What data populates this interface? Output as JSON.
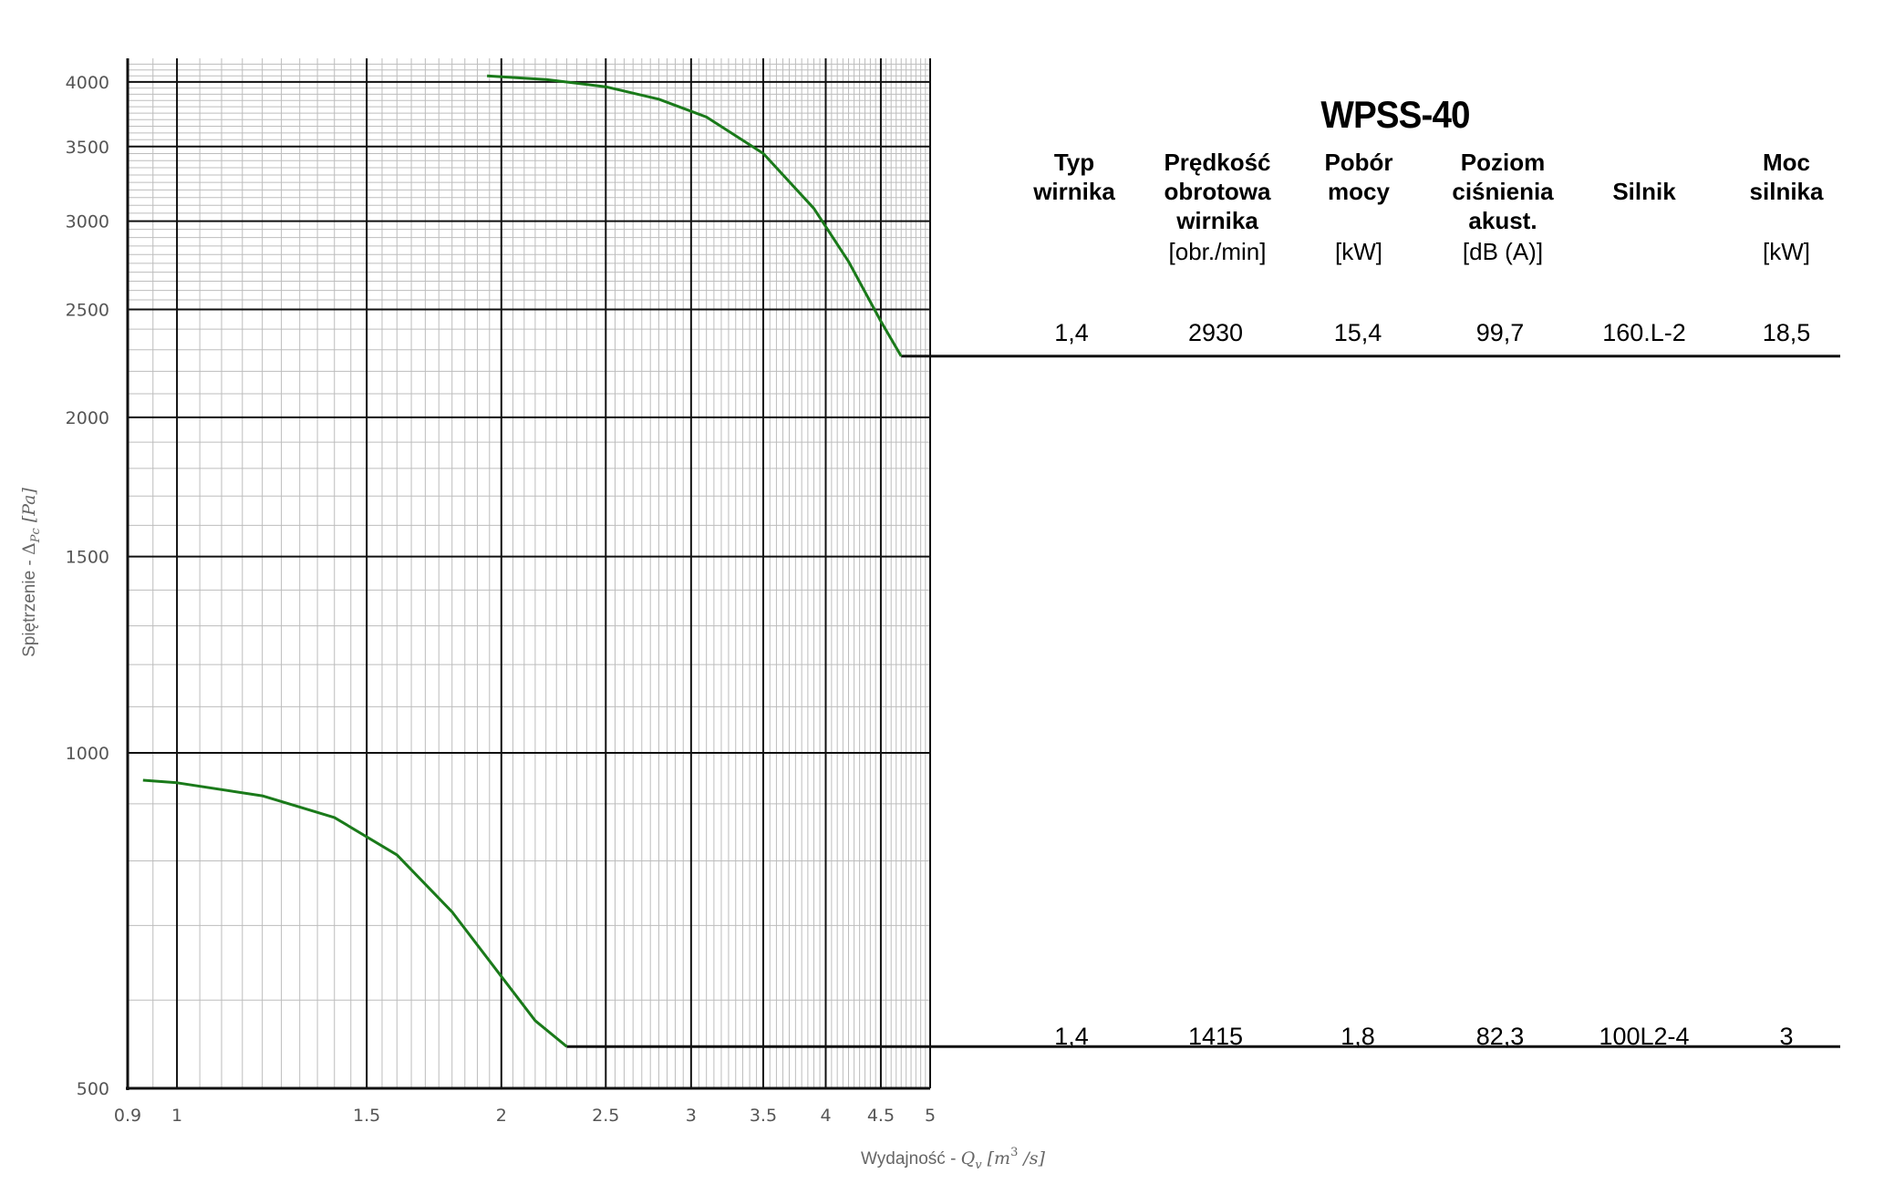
{
  "chart_data": {
    "type": "line",
    "xscale": "log",
    "yscale": "log",
    "xlim": [
      0.9,
      5
    ],
    "ylim": [
      500,
      4200
    ],
    "x_ticks": [
      0.9,
      1,
      1.5,
      2,
      2.5,
      3,
      3.5,
      4,
      4.5,
      5
    ],
    "x_tick_labels": [
      "0.9",
      "1",
      "1.5",
      "2",
      "2.5",
      "3",
      "3.5",
      "4",
      "4.5",
      "5"
    ],
    "y_ticks": [
      500,
      1000,
      1500,
      2000,
      2500,
      3000,
      3500,
      4000
    ],
    "y_tick_labels": [
      "500",
      "1000",
      "1500",
      "2000",
      "2500",
      "3000",
      "3500",
      "4000"
    ],
    "xlabel": "Wydajność - Q_v [m³ /s]",
    "xlabel_parts": {
      "text": "Wydajność - ",
      "var": "Q",
      "sub": "v",
      "unit_open": " [m",
      "sup": "3",
      "unit_close": " /s]"
    },
    "ylabel": "Spiętrzenie - Δ_Pc [Pa]",
    "ylabel_parts": {
      "text": "Spiętrzenie - ",
      "var": "Δ",
      "sub": "Pc",
      "unit": " [Pa]"
    },
    "grid": true,
    "curve_color": "#1a7a1a",
    "series": [
      {
        "x": [
          1.94,
          2.2,
          2.5,
          2.8,
          3.1,
          3.5,
          3.9,
          4.2,
          4.5,
          4.7
        ],
        "y": [
          4050,
          4020,
          3960,
          3860,
          3720,
          3450,
          3080,
          2760,
          2440,
          2270
        ]
      },
      {
        "x": [
          0.93,
          1.0,
          1.2,
          1.4,
          1.6,
          1.8,
          2.0,
          2.15,
          2.3
        ],
        "y": [
          945,
          940,
          915,
          875,
          810,
          720,
          630,
          575,
          545
        ]
      }
    ],
    "leader_lines": [
      {
        "x": 4.7,
        "y": 2270
      },
      {
        "x": 2.3,
        "y": 545
      }
    ]
  },
  "table": {
    "title": "WPSS-40",
    "headers": [
      {
        "label": "Typ\nwirnika",
        "unit": ""
      },
      {
        "label": "Prędkość\nobrotowa\nwirnika",
        "unit": "[obr./min]"
      },
      {
        "label": "Pobór\nmocy",
        "unit": "[kW]"
      },
      {
        "label": "Poziom\nciśnienia\nakust.",
        "unit": "[dB (A)]"
      },
      {
        "label": "Silnik",
        "unit": ""
      },
      {
        "label": "Moc\nsilnika",
        "unit": "[kW]"
      }
    ],
    "rows": [
      [
        "1,4",
        "2930",
        "15,4",
        "99,7",
        "160.L-2",
        "18,5"
      ],
      [
        "1,4",
        "1415",
        "1,8",
        "82,3",
        "100L2-4",
        "3"
      ]
    ]
  }
}
